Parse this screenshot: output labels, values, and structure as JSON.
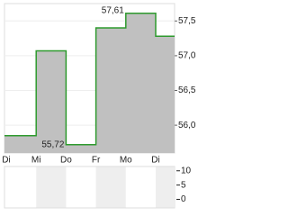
{
  "chart_data": [
    {
      "type": "step",
      "categories": [
        "Di",
        "Mi",
        "Do",
        "Fr",
        "Mo",
        "Di"
      ],
      "values": [
        55.85,
        57.07,
        55.72,
        57.4,
        57.61,
        57.28
      ],
      "value_labels": [
        null,
        null,
        "55,72",
        null,
        "57,61",
        null
      ],
      "color": "#2e9a2e",
      "fill": "#c0c0c0",
      "ylim": [
        55.6,
        57.75
      ],
      "yticks": [
        {
          "value": 56.0,
          "label": "56,0"
        },
        {
          "value": 56.5,
          "label": "56,5"
        },
        {
          "value": 57.0,
          "label": "57,0"
        },
        {
          "value": 57.5,
          "label": "57,5"
        }
      ],
      "grid": true
    },
    {
      "type": "bar",
      "ylim": [
        -3,
        11.5
      ],
      "yticks": [
        0,
        5,
        10
      ],
      "grid": false
    }
  ]
}
